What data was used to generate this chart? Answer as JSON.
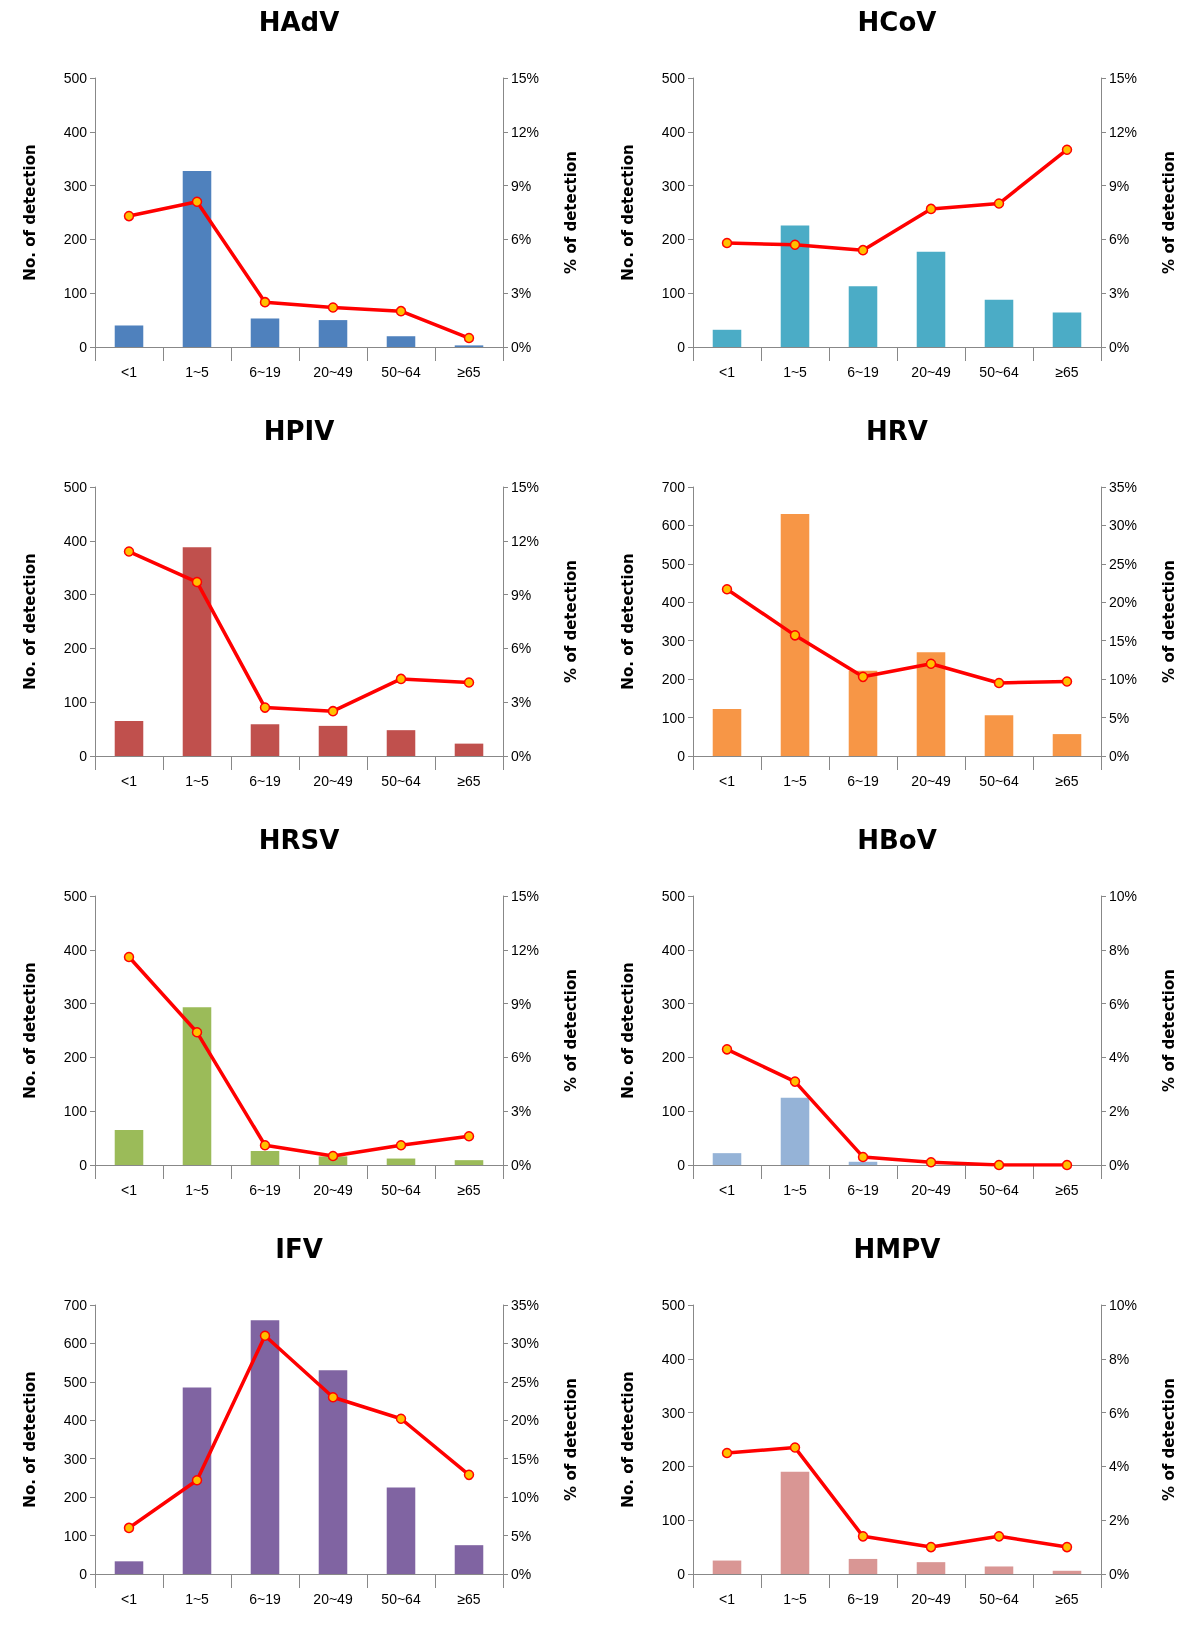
{
  "chart_data": [
    {
      "type": "bar",
      "title": "HAdV",
      "categories": [
        "<1",
        "1~5",
        "6~19",
        "20~49",
        "50~64",
        "≥65"
      ],
      "ylabel": "No. of detection",
      "y2label": "% of detection",
      "ylim": [
        0,
        500
      ],
      "yticks": [
        0,
        100,
        200,
        300,
        400,
        500
      ],
      "y2lim": [
        0,
        15
      ],
      "y2ticks": [
        {
          "value": 0,
          "label": "0%"
        },
        {
          "value": 3,
          "label": "3%"
        },
        {
          "value": 6,
          "label": "6%"
        },
        {
          "value": 9,
          "label": "9%"
        },
        {
          "value": 12,
          "label": "12%"
        },
        {
          "value": 15,
          "label": "15%"
        }
      ],
      "grid": false,
      "marker": "circle",
      "series": [
        {
          "color": "#4f81bd",
          "values": [
            40,
            327,
            53,
            50,
            20,
            3
          ]
        },
        {
          "type": "line",
          "axis": "y2",
          "color": "#ff0000",
          "values": [
            7.3,
            8.1,
            2.5,
            2.2,
            2.0,
            0.5
          ]
        }
      ]
    },
    {
      "type": "bar",
      "title": "HCoV",
      "categories": [
        "<1",
        "1~5",
        "6~19",
        "20~49",
        "50~64",
        "≥65"
      ],
      "ylabel": "No. of detection",
      "y2label": "% of detection",
      "ylim": [
        0,
        500
      ],
      "yticks": [
        0,
        100,
        200,
        300,
        400,
        500
      ],
      "y2lim": [
        0,
        15
      ],
      "y2ticks": [
        {
          "value": 0,
          "label": "0%"
        },
        {
          "value": 3,
          "label": "3%"
        },
        {
          "value": 6,
          "label": "6%"
        },
        {
          "value": 9,
          "label": "9%"
        },
        {
          "value": 12,
          "label": "12%"
        },
        {
          "value": 15,
          "label": "15%"
        }
      ],
      "grid": false,
      "marker": "circle",
      "series": [
        {
          "color": "#4bacc6",
          "values": [
            32,
            226,
            113,
            177,
            88,
            64
          ]
        },
        {
          "type": "line",
          "axis": "y2",
          "color": "#ff0000",
          "values": [
            5.8,
            5.7,
            5.4,
            7.7,
            8.0,
            11.0
          ]
        }
      ]
    },
    {
      "type": "bar",
      "title": "HPIV",
      "categories": [
        "<1",
        "1~5",
        "6~19",
        "20~49",
        "50~64",
        "≥65"
      ],
      "ylabel": "No. of detection",
      "y2label": "% of detection",
      "ylim": [
        0,
        500
      ],
      "yticks": [
        0,
        100,
        200,
        300,
        400,
        500
      ],
      "y2lim": [
        0,
        15
      ],
      "y2ticks": [
        {
          "value": 0,
          "label": "0%"
        },
        {
          "value": 3,
          "label": "3%"
        },
        {
          "value": 6,
          "label": "6%"
        },
        {
          "value": 9,
          "label": "9%"
        },
        {
          "value": 12,
          "label": "12%"
        },
        {
          "value": 15,
          "label": "15%"
        }
      ],
      "grid": false,
      "marker": "circle",
      "series": [
        {
          "color": "#c0504d",
          "values": [
            65,
            388,
            59,
            56,
            48,
            23
          ]
        },
        {
          "type": "line",
          "axis": "y2",
          "color": "#ff0000",
          "values": [
            11.4,
            9.7,
            2.7,
            2.5,
            4.3,
            4.1
          ]
        }
      ]
    },
    {
      "type": "bar",
      "title": "HRV",
      "categories": [
        "<1",
        "1~5",
        "6~19",
        "20~49",
        "50~64",
        "≥65"
      ],
      "ylabel": "No. of detection",
      "y2label": "% of detection",
      "ylim": [
        0,
        700
      ],
      "yticks": [
        0,
        100,
        200,
        300,
        400,
        500,
        600,
        700
      ],
      "y2lim": [
        0,
        35
      ],
      "y2ticks": [
        {
          "value": 0,
          "label": "0%"
        },
        {
          "value": 5,
          "label": "5%"
        },
        {
          "value": 10,
          "label": "10%"
        },
        {
          "value": 15,
          "label": "15%"
        },
        {
          "value": 20,
          "label": "20%"
        },
        {
          "value": 25,
          "label": "25%"
        },
        {
          "value": 30,
          "label": "30%"
        },
        {
          "value": 35,
          "label": "35%"
        }
      ],
      "grid": false,
      "marker": "circle",
      "series": [
        {
          "color": "#f79646",
          "values": [
            122,
            630,
            222,
            270,
            106,
            57
          ]
        },
        {
          "type": "line",
          "axis": "y2",
          "color": "#ff0000",
          "values": [
            21.7,
            15.7,
            10.3,
            12.0,
            9.5,
            9.7
          ]
        }
      ]
    },
    {
      "type": "bar",
      "title": "HRSV",
      "categories": [
        "<1",
        "1~5",
        "6~19",
        "20~49",
        "50~64",
        "≥65"
      ],
      "ylabel": "No. of detection",
      "y2label": "% of detection",
      "ylim": [
        0,
        500
      ],
      "yticks": [
        0,
        100,
        200,
        300,
        400,
        500
      ],
      "y2lim": [
        0,
        15
      ],
      "y2ticks": [
        {
          "value": 0,
          "label": "0%"
        },
        {
          "value": 3,
          "label": "3%"
        },
        {
          "value": 6,
          "label": "6%"
        },
        {
          "value": 9,
          "label": "9%"
        },
        {
          "value": 12,
          "label": "12%"
        },
        {
          "value": 15,
          "label": "15%"
        }
      ],
      "grid": false,
      "marker": "circle",
      "series": [
        {
          "color": "#9bbb59",
          "values": [
            65,
            293,
            26,
            16,
            12,
            9
          ]
        },
        {
          "type": "line",
          "axis": "y2",
          "color": "#ff0000",
          "values": [
            11.6,
            7.4,
            1.1,
            0.5,
            1.1,
            1.6
          ]
        }
      ]
    },
    {
      "type": "bar",
      "title": "HBoV",
      "categories": [
        "<1",
        "1~5",
        "6~19",
        "20~49",
        "50~64",
        "≥65"
      ],
      "ylabel": "No. of detection",
      "y2label": "% of detection",
      "ylim": [
        0,
        500
      ],
      "yticks": [
        0,
        100,
        200,
        300,
        400,
        500
      ],
      "y2lim": [
        0,
        10
      ],
      "y2ticks": [
        {
          "value": 0,
          "label": "0%"
        },
        {
          "value": 2,
          "label": "2%"
        },
        {
          "value": 4,
          "label": "4%"
        },
        {
          "value": 6,
          "label": "6%"
        },
        {
          "value": 8,
          "label": "8%"
        },
        {
          "value": 10,
          "label": "10%"
        }
      ],
      "grid": false,
      "marker": "circle",
      "series": [
        {
          "color": "#95b3d7",
          "values": [
            22,
            125,
            6,
            null,
            null,
            null
          ]
        },
        {
          "type": "line",
          "axis": "y2",
          "color": "#ff0000",
          "values": [
            4.3,
            3.1,
            0.3,
            0.1,
            0.0,
            0.0
          ]
        }
      ]
    },
    {
      "type": "bar",
      "title": "IFV",
      "categories": [
        "<1",
        "1~5",
        "6~19",
        "20~49",
        "50~64",
        "≥65"
      ],
      "ylabel": "No. of detection",
      "y2label": "% of detection",
      "ylim": [
        0,
        700
      ],
      "yticks": [
        0,
        100,
        200,
        300,
        400,
        500,
        600,
        700
      ],
      "y2lim": [
        0,
        35
      ],
      "y2ticks": [
        {
          "value": 0,
          "label": "0%"
        },
        {
          "value": 5,
          "label": "5%"
        },
        {
          "value": 10,
          "label": "10%"
        },
        {
          "value": 15,
          "label": "15%"
        },
        {
          "value": 20,
          "label": "20%"
        },
        {
          "value": 25,
          "label": "25%"
        },
        {
          "value": 30,
          "label": "30%"
        },
        {
          "value": 35,
          "label": "35%"
        }
      ],
      "grid": false,
      "marker": "circle",
      "series": [
        {
          "color": "#8064a2",
          "values": [
            33,
            485,
            660,
            530,
            225,
            75
          ]
        },
        {
          "type": "line",
          "axis": "y2",
          "color": "#ff0000",
          "values": [
            6.0,
            12.2,
            31.0,
            23.0,
            20.2,
            12.9
          ]
        }
      ]
    },
    {
      "type": "bar",
      "title": "HMPV",
      "categories": [
        "<1",
        "1~5",
        "6~19",
        "20~49",
        "50~64",
        "≥65"
      ],
      "ylabel": "No. of detection",
      "y2label": "% of detection",
      "ylim": [
        0,
        500
      ],
      "yticks": [
        0,
        100,
        200,
        300,
        400,
        500
      ],
      "y2lim": [
        0,
        10
      ],
      "y2ticks": [
        {
          "value": 0,
          "label": "0%"
        },
        {
          "value": 2,
          "label": "2%"
        },
        {
          "value": 4,
          "label": "4%"
        },
        {
          "value": 6,
          "label": "6%"
        },
        {
          "value": 8,
          "label": "8%"
        },
        {
          "value": 10,
          "label": "10%"
        }
      ],
      "grid": false,
      "marker": "circle",
      "series": [
        {
          "color": "#d99694",
          "values": [
            25,
            190,
            28,
            22,
            14,
            6
          ]
        },
        {
          "type": "line",
          "axis": "y2",
          "color": "#ff0000",
          "values": [
            4.5,
            4.7,
            1.4,
            1.0,
            1.4,
            1.0
          ]
        }
      ]
    }
  ]
}
